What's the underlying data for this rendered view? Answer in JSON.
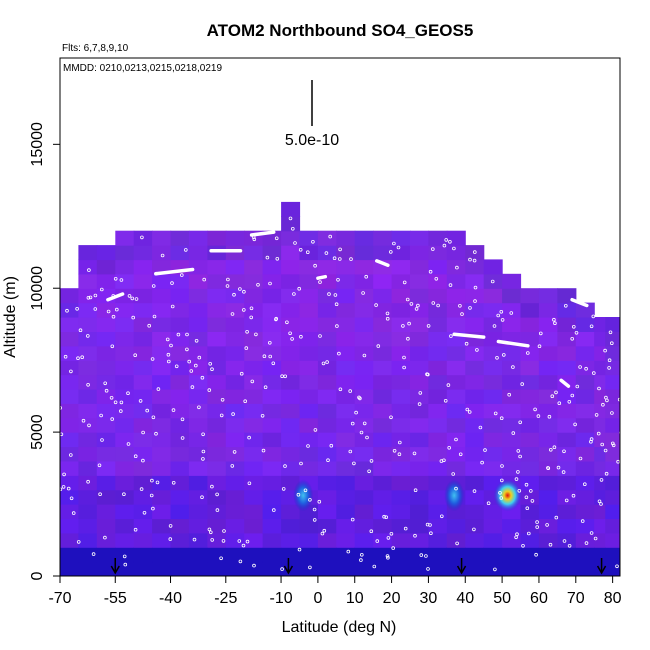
{
  "chart_data": {
    "type": "heatmap",
    "title": "ATOM2 Northbound SO4_GEOS5",
    "subtitle_flights": "Flts: 6,7,8,9,10",
    "subtitle_dates": "MMDD: 0210,0213,0215,0218,0219",
    "xlabel": "Latitude (deg N)",
    "ylabel": "Altitude (m)",
    "xlim": [
      -70,
      82
    ],
    "ylim": [
      0,
      18000
    ],
    "x_ticks": [
      -70,
      -55,
      -40,
      -25,
      -10,
      0,
      10,
      20,
      30,
      40,
      50,
      60,
      70,
      80
    ],
    "y_ticks": [
      0,
      5000,
      10000,
      15000
    ],
    "scale_label": "5.0e-10",
    "grid": false,
    "legend": "none",
    "profile_arrow_latitudes": [
      -55,
      -8,
      39,
      77
    ],
    "flight_track_segments": [
      {
        "x": [
          -57,
          -53
        ],
        "y": [
          9600,
          9800
        ]
      },
      {
        "x": [
          -44,
          -34
        ],
        "y": [
          10500,
          10650
        ]
      },
      {
        "x": [
          -29,
          -21
        ],
        "y": [
          11300,
          11300
        ]
      },
      {
        "x": [
          -18,
          -12
        ],
        "y": [
          11850,
          11950
        ]
      },
      {
        "x": [
          0,
          2
        ],
        "y": [
          10350,
          10400
        ]
      },
      {
        "x": [
          16,
          19
        ],
        "y": [
          10950,
          10800
        ]
      },
      {
        "x": [
          37,
          45
        ],
        "y": [
          8400,
          8300
        ]
      },
      {
        "x": [
          49,
          57
        ],
        "y": [
          8150,
          8000
        ]
      },
      {
        "x": [
          66,
          68
        ],
        "y": [
          6800,
          6600
        ]
      },
      {
        "x": [
          69,
          73
        ],
        "y": [
          9600,
          9400
        ]
      }
    ],
    "columns": [
      {
        "lat": -67.5,
        "top": 10000
      },
      {
        "lat": -62.5,
        "top": 11500
      },
      {
        "lat": -57.5,
        "top": 11500
      },
      {
        "lat": -52.5,
        "top": 12000
      },
      {
        "lat": -47.5,
        "top": 12000
      },
      {
        "lat": -42.5,
        "top": 12000
      },
      {
        "lat": -37.5,
        "top": 12000
      },
      {
        "lat": -32.5,
        "top": 12000
      },
      {
        "lat": -27.5,
        "top": 12000
      },
      {
        "lat": -22.5,
        "top": 12000
      },
      {
        "lat": -17.5,
        "top": 12000
      },
      {
        "lat": -12.5,
        "top": 12000
      },
      {
        "lat": -7.5,
        "top": 12900
      },
      {
        "lat": -2.5,
        "top": 12000
      },
      {
        "lat": 2.5,
        "top": 12000
      },
      {
        "lat": 7.5,
        "top": 12000
      },
      {
        "lat": 12.5,
        "top": 12000
      },
      {
        "lat": 17.5,
        "top": 12000
      },
      {
        "lat": 22.5,
        "top": 12000
      },
      {
        "lat": 27.5,
        "top": 12000
      },
      {
        "lat": 32.5,
        "top": 12000
      },
      {
        "lat": 37.5,
        "top": 12000
      },
      {
        "lat": 42.5,
        "top": 11500
      },
      {
        "lat": 47.5,
        "top": 11000
      },
      {
        "lat": 52.5,
        "top": 10500
      },
      {
        "lat": 57.5,
        "top": 10000
      },
      {
        "lat": 62.5,
        "top": 10000
      },
      {
        "lat": 67.5,
        "top": 9800
      },
      {
        "lat": 72.5,
        "top": 9500
      },
      {
        "lat": 77.5,
        "top": 9000
      },
      {
        "lat": 80.5,
        "top": 8800
      }
    ],
    "hotspots": [
      {
        "lat": 51.5,
        "alt": 2800,
        "intensity": "high"
      },
      {
        "lat": -4,
        "alt": 2800,
        "intensity": "medium"
      },
      {
        "lat": 37,
        "alt": 2800,
        "intensity": "medium"
      }
    ]
  }
}
